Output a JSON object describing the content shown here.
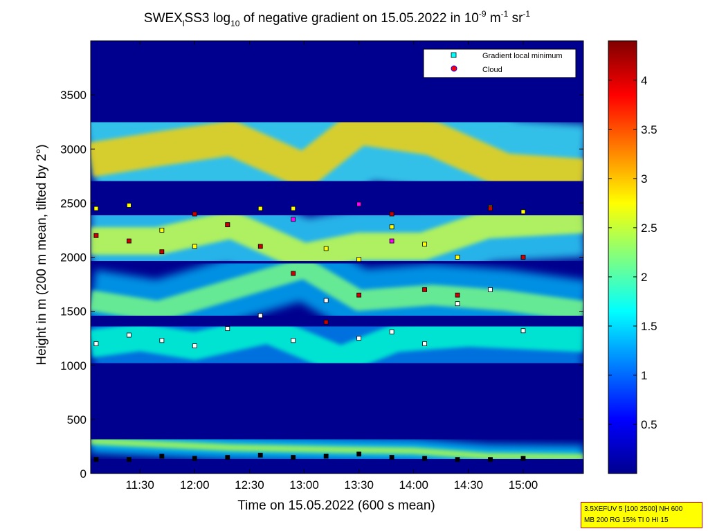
{
  "chart_data": {
    "type": "heatmap",
    "title": {
      "prefix": "SWEX",
      "prefix_sub": "l",
      "part1": "SS3 log",
      "part1_sub": "10",
      "part2": " of negative gradient on 15.05.2022 in 10",
      "sup1": "-9",
      "part3": " m",
      "sup2": "-1",
      "part4": " sr",
      "sup3": "-1"
    },
    "xlabel": "Time on 15.05.2022 (600 s mean)",
    "ylabel": "Height in m (200 m mean, tilted by 2°)",
    "x_ticks": [
      "11:30",
      "12:00",
      "12:30",
      "13:00",
      "13:30",
      "14:00",
      "14:30",
      "15:00"
    ],
    "x_tick_minutes": [
      690,
      720,
      750,
      780,
      810,
      840,
      870,
      900
    ],
    "xlim_minutes": [
      663,
      933
    ],
    "y_ticks": [
      "0",
      "500",
      "1000",
      "1500",
      "2000",
      "2500",
      "3000",
      "3500"
    ],
    "y_tick_values": [
      0,
      500,
      1000,
      1500,
      2000,
      2500,
      3000,
      3500
    ],
    "ylim": [
      0,
      4000
    ],
    "colorbar": {
      "ticks": [
        "0.5",
        "1",
        "1.5",
        "2",
        "2.5",
        "3",
        "3.5",
        "4"
      ],
      "tick_values": [
        0.5,
        1,
        1.5,
        2,
        2.5,
        3,
        3.5,
        4
      ],
      "range": [
        0,
        4.4
      ],
      "colormap": "jet"
    },
    "legend": {
      "position": "top-right",
      "entries": [
        {
          "label": "Gradient local minimum",
          "marker": "square",
          "color": "#00ffff"
        },
        {
          "label": "Cloud",
          "marker": "circle",
          "color": "#ff0000"
        }
      ]
    },
    "layers": [
      {
        "name": "surface",
        "values": [
          [
            663,
            300
          ],
          [
            700,
            270
          ],
          [
            740,
            240
          ],
          [
            800,
            220
          ],
          [
            840,
            210
          ],
          [
            880,
            160
          ],
          [
            933,
            150
          ]
        ]
      },
      {
        "name": "low",
        "values": [
          [
            663,
            1200
          ],
          [
            690,
            1260
          ],
          [
            720,
            1180
          ],
          [
            760,
            1330
          ],
          [
            800,
            1050
          ],
          [
            830,
            1250
          ],
          [
            870,
            1300
          ],
          [
            933,
            1250
          ]
        ]
      },
      {
        "name": "mid",
        "values": [
          [
            663,
            1600
          ],
          [
            700,
            1500
          ],
          [
            740,
            1700
          ],
          [
            780,
            1900
          ],
          [
            810,
            1600
          ],
          [
            850,
            1650
          ],
          [
            890,
            1600
          ],
          [
            933,
            1500
          ]
        ]
      },
      {
        "name": "upper",
        "values": [
          [
            663,
            2150
          ],
          [
            700,
            2150
          ],
          [
            740,
            2300
          ],
          [
            780,
            2000
          ],
          [
            810,
            2100
          ],
          [
            845,
            2100
          ],
          [
            880,
            2300
          ],
          [
            933,
            2350
          ]
        ]
      },
      {
        "name": "top",
        "values": [
          [
            663,
            2900
          ],
          [
            700,
            3000
          ],
          [
            740,
            3100
          ],
          [
            780,
            2800
          ],
          [
            810,
            3200
          ],
          [
            850,
            3100
          ],
          [
            890,
            2800
          ],
          [
            933,
            2750
          ]
        ]
      }
    ],
    "marker_rows": [
      {
        "color": "#000000",
        "y": [
          130,
          130,
          160,
          140,
          150,
          170,
          150,
          160,
          180,
          150,
          140,
          130,
          130,
          140
        ]
      },
      {
        "color": "#ffffff",
        "y": [
          1200,
          1280,
          1230,
          1180,
          1340,
          1460,
          1230,
          1600,
          1250,
          1310,
          1200,
          1570,
          1700,
          1320
        ]
      },
      {
        "color": "#ffff00",
        "y": [
          2450,
          2480,
          2250,
          2100,
          2300,
          2450,
          2450,
          2080,
          1980,
          2280,
          2120,
          2000,
          2460,
          2420
        ]
      },
      {
        "color": "#cc0000",
        "y": [
          2200,
          2150,
          2050,
          2400,
          2300,
          2100,
          1850,
          1400,
          1650,
          2400,
          1700,
          1650,
          2450,
          2000
        ]
      },
      {
        "color": "#ff00ff",
        "y": [
          null,
          null,
          null,
          null,
          null,
          null,
          2350,
          null,
          2490,
          2150,
          null,
          null,
          null,
          null
        ]
      }
    ],
    "marker_x_minutes": [
      666,
      684,
      702,
      720,
      738,
      756,
      774,
      792,
      810,
      828,
      846,
      864,
      882,
      900
    ]
  },
  "info_box": {
    "line1": "3.5XEFUV 5 [100 2500] NH 600",
    "line2": "MB 200 RG 15% TI 0 HI 15"
  }
}
